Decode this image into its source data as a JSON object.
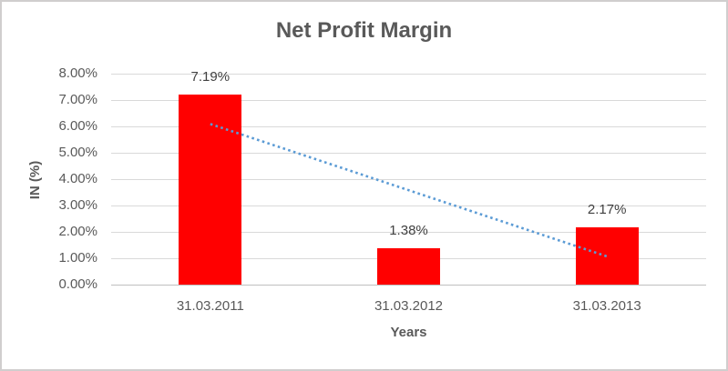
{
  "window": {
    "background_color": "#FFFFFF",
    "border_color": "#D0CECE"
  },
  "chart_data": {
    "type": "bar",
    "title": "Net Profit Margin",
    "xlabel": "Years",
    "ylabel": "IN (%)",
    "categories": [
      "31.03.2011",
      "31.03.2012",
      "31.03.2013"
    ],
    "values": [
      7.19,
      1.38,
      2.17
    ],
    "data_labels": [
      "7.19%",
      "1.38%",
      "2.17%"
    ],
    "bar_color": "#FF0000",
    "ylim": [
      0,
      8
    ],
    "ytick_step": 1,
    "ytick_labels": [
      "0.00%",
      "1.00%",
      "2.00%",
      "3.00%",
      "4.00%",
      "5.00%",
      "6.00%",
      "7.00%",
      "8.00%"
    ],
    "grid": true,
    "legend": "none",
    "gridline_color": "#D9D9D9",
    "axis_line_color": "#BFBFBF",
    "text_color": "#595959",
    "data_label_color": "#404040",
    "trendline": {
      "type": "linear",
      "style": "dotted",
      "color": "#5B9BD5",
      "start_value": 6.09,
      "end_value": 1.07
    }
  }
}
